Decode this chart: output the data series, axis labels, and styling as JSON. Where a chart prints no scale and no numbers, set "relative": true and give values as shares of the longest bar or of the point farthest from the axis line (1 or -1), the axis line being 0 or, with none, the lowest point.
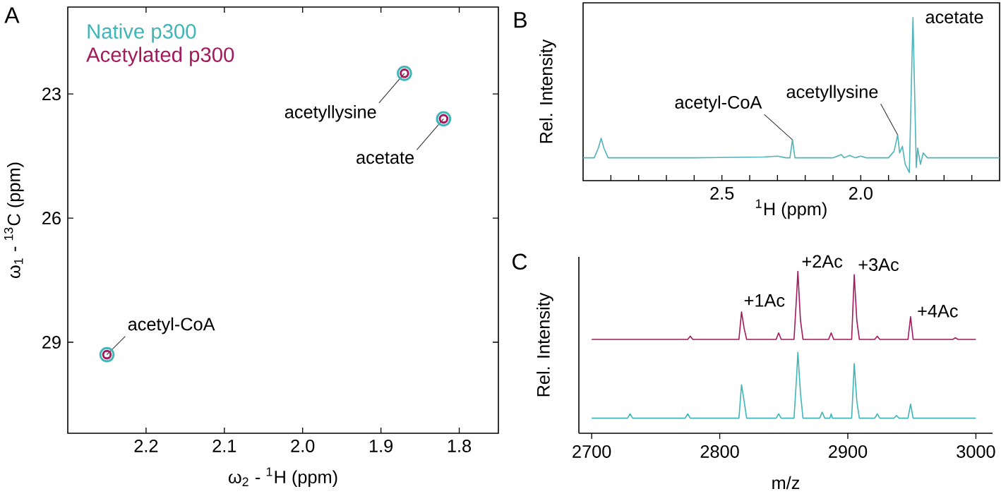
{
  "chart_data": [
    {
      "type": "scatter",
      "title": "A",
      "xlabel": "ω$_{2}$ - $^{1}$H (ppm)",
      "ylabel": "ω$_{1}$ - $^{13}$C (ppm)",
      "xlim": [
        2.3,
        1.75
      ],
      "ylim": [
        31.2,
        20.9
      ],
      "xticks": [
        2.2,
        2.1,
        {
          "value": 2.0,
          "label": "2.0"
        },
        1.9,
        1.8
      ],
      "yticks": [
        23,
        26,
        29
      ],
      "marker": "circle",
      "legend": "top left",
      "series": [
        {
          "name": "Native p300",
          "color": "#3fb5b8",
          "x": [
            1.87,
            1.82,
            2.25
          ],
          "values": [
            22.5,
            23.6,
            29.3
          ]
        },
        {
          "name": "Acetylated p300",
          "color": "#a3195b",
          "x": [
            1.87,
            1.82,
            2.25
          ],
          "values": [
            22.5,
            23.6,
            29.3
          ]
        }
      ],
      "annotations": [
        {
          "text": "acetyllysine",
          "x": 1.87,
          "y": 22.5
        },
        {
          "text": "acetate",
          "x": 1.82,
          "y": 23.6
        },
        {
          "text": "acetyl-CoA",
          "x": 2.25,
          "y": 29.3
        }
      ]
    },
    {
      "type": "line",
      "title": "B",
      "xlabel": "$^{1}$H (ppm)",
      "ylabel": "Rel. Intensity",
      "relative": true,
      "xlim": [
        3.0,
        1.5
      ],
      "xticks": [
        {
          "value": 2.9,
          "label": null
        },
        {
          "value": 2.8,
          "label": null
        },
        {
          "value": 2.7,
          "label": null
        },
        {
          "value": 2.6,
          "label": null
        },
        2.5,
        {
          "value": 2.4,
          "label": null
        },
        {
          "value": 2.3,
          "label": null
        },
        {
          "value": 2.2,
          "label": null
        },
        {
          "value": 2.1,
          "label": null
        },
        {
          "value": 2.0,
          "label": "2.0"
        },
        {
          "value": 1.9,
          "label": null
        },
        {
          "value": 1.8,
          "label": null
        },
        {
          "value": 1.7,
          "label": null
        },
        {
          "value": 1.6,
          "label": null
        }
      ],
      "series": [
        {
          "color": "#4fb3b8",
          "x": [
            3.0,
            2.96,
            2.945,
            2.935,
            2.925,
            2.91,
            2.8,
            2.6,
            2.35,
            2.3,
            2.27,
            2.255,
            2.246,
            2.237,
            2.1,
            2.07,
            2.06,
            2.04,
            2.02,
            2.0,
            1.98,
            1.9,
            1.88,
            1.867,
            1.86,
            1.85,
            1.84,
            1.825,
            1.812,
            1.8,
            1.795,
            1.785,
            1.775,
            1.76,
            1.6,
            1.5
          ],
          "values": [
            0.14,
            0.14,
            0.2,
            0.26,
            0.2,
            0.14,
            0.14,
            0.14,
            0.145,
            0.15,
            0.14,
            0.14,
            0.25,
            0.14,
            0.14,
            0.16,
            0.14,
            0.155,
            0.14,
            0.15,
            0.14,
            0.14,
            0.18,
            0.28,
            0.17,
            0.21,
            0.1,
            0.05,
            1.0,
            0.08,
            0.2,
            0.1,
            0.17,
            0.14,
            0.14,
            0.14
          ]
        }
      ],
      "annotations": [
        {
          "text": "acetyl-CoA",
          "x": 2.246,
          "y": 0.25
        },
        {
          "text": "acetyllysine",
          "x": 1.867,
          "y": 0.28
        },
        {
          "text": "acetate",
          "x": 1.812,
          "y": 1.0
        }
      ]
    },
    {
      "type": "line",
      "title": "C",
      "xlabel": "m/z",
      "ylabel": "Rel. Intensity",
      "relative": true,
      "xlim": [
        2690,
        3013
      ],
      "xticks": [
        2700,
        2800,
        2900,
        3000
      ],
      "series": [
        {
          "color": "#a3195b",
          "x": [
            2700,
            2775,
            2777,
            2779,
            2815,
            2817,
            2819,
            2821,
            2844,
            2846,
            2848,
            2858,
            2860,
            2861,
            2863,
            2865,
            2885,
            2887,
            2889,
            2903,
            2905,
            2907,
            2909,
            2921,
            2923,
            2925,
            2947,
            2949,
            2951,
            2982,
            2984,
            2986,
            3000
          ],
          "values": [
            0.58,
            0.58,
            0.6,
            0.58,
            0.58,
            0.75,
            0.65,
            0.58,
            0.58,
            0.62,
            0.58,
            0.58,
            0.85,
            1.0,
            0.7,
            0.58,
            0.58,
            0.62,
            0.58,
            0.58,
            0.98,
            0.7,
            0.58,
            0.58,
            0.6,
            0.58,
            0.58,
            0.72,
            0.58,
            0.58,
            0.59,
            0.58,
            0.58
          ]
        },
        {
          "color": "#3fb5b8",
          "x": [
            2700,
            2728,
            2730,
            2732,
            2773,
            2775,
            2777,
            2815,
            2817,
            2819,
            2821,
            2844,
            2846,
            2848,
            2858,
            2860,
            2861,
            2863,
            2865,
            2878,
            2880,
            2882,
            2886,
            2887,
            2888,
            2903,
            2905,
            2907,
            2909,
            2921,
            2923,
            2925,
            2936,
            2938,
            2940,
            2947,
            2949,
            2951,
            3000
          ],
          "values": [
            0.093,
            0.093,
            0.12,
            0.093,
            0.093,
            0.12,
            0.093,
            0.093,
            0.3,
            0.2,
            0.093,
            0.093,
            0.12,
            0.093,
            0.093,
            0.35,
            0.5,
            0.25,
            0.093,
            0.093,
            0.13,
            0.093,
            0.093,
            0.12,
            0.093,
            0.093,
            0.43,
            0.2,
            0.093,
            0.093,
            0.12,
            0.093,
            0.093,
            0.11,
            0.093,
            0.093,
            0.18,
            0.093,
            0.093
          ]
        }
      ],
      "annotations": [
        {
          "text": "+1Ac",
          "x": 2817,
          "y": 0.75
        },
        {
          "text": "+2Ac",
          "x": 2861,
          "y": 1.0
        },
        {
          "text": "+3Ac",
          "x": 2905,
          "y": 0.98
        },
        {
          "text": "+4Ac",
          "x": 2949,
          "y": 0.72
        }
      ]
    }
  ]
}
